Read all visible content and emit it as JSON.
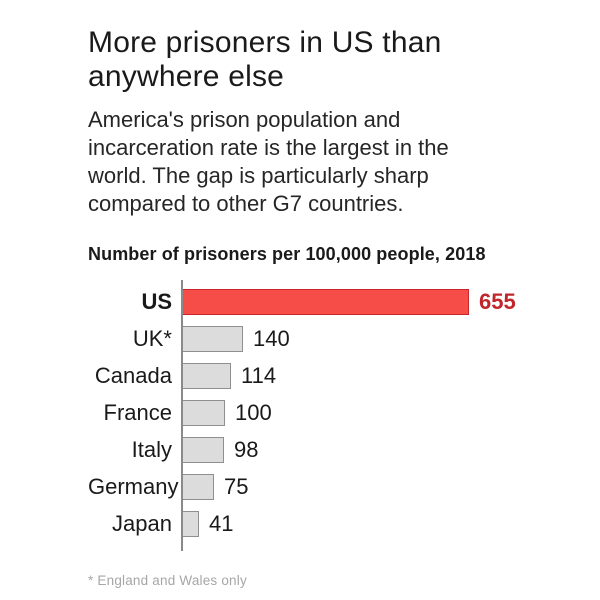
{
  "title": "More prisoners in US than anywhere else",
  "subtitle": "America's prison population and incarceration rate is the largest in the world. The gap is particularly sharp compared to other G7 countries.",
  "chart_heading": "Number of prisoners per 100,000 people, 2018",
  "footnote": "* England and Wales only",
  "colors": {
    "highlight_fill": "#f74d49",
    "highlight_border": "#c9252b",
    "highlight_text": "#c0262c",
    "bar_fill": "#dcdcdc",
    "bar_border": "#8f8f8f",
    "axis": "#8a8a8a"
  },
  "chart_data": {
    "type": "bar",
    "orientation": "horizontal",
    "title": "Number of prisoners per 100,000 people, 2018",
    "categories": [
      "US",
      "UK*",
      "Canada",
      "France",
      "Italy",
      "Germany",
      "Japan"
    ],
    "values": [
      655,
      140,
      114,
      100,
      98,
      75,
      41
    ],
    "highlight_category": "US",
    "xlabel": "",
    "ylabel": "",
    "xlim": [
      0,
      655
    ],
    "grid": false,
    "legend": false,
    "value_labels": true,
    "footnote": "* England and Wales only"
  }
}
